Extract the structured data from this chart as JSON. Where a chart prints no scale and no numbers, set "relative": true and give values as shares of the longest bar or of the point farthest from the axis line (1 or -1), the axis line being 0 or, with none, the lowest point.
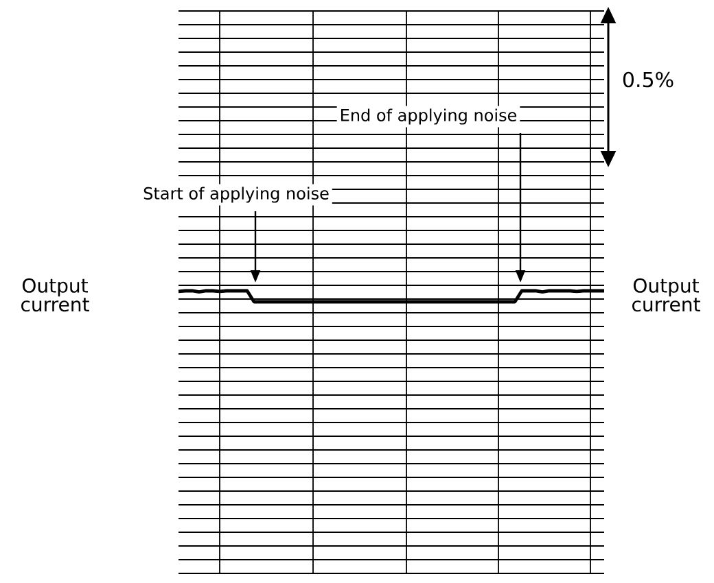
{
  "chart_data": {
    "type": "line",
    "relative": true,
    "color": "#000000",
    "grid": true,
    "ylabel": "Output current",
    "y2label": "Output current",
    "annotations": [
      "Start of applying noise",
      "End of applying noise",
      "0.5%"
    ],
    "categories": [
      null,
      null,
      null,
      null,
      null,
      null,
      null,
      null,
      null,
      null,
      null,
      null,
      null,
      null,
      null,
      null,
      null,
      null,
      null,
      null,
      null,
      null,
      null,
      null,
      null,
      null,
      null,
      null,
      null,
      null,
      null,
      null,
      null,
      null,
      null,
      null,
      null,
      null,
      null,
      null,
      null,
      null,
      null,
      null,
      null,
      null,
      null,
      null,
      null,
      null,
      null,
      null,
      null,
      null,
      null,
      null,
      null,
      null,
      null,
      null,
      null,
      null,
      null
    ],
    "values": [
      0.95,
      1,
      1,
      0.9,
      1,
      1,
      0.95,
      1,
      1,
      1,
      1,
      0,
      0,
      0,
      0,
      0,
      0,
      0,
      0,
      0,
      0,
      0,
      0,
      0,
      0,
      0,
      0,
      0,
      0,
      0,
      0,
      0,
      0,
      0,
      0,
      0,
      0,
      0,
      0,
      0,
      0,
      0,
      0,
      0,
      0,
      0,
      0,
      0,
      0,
      0,
      1,
      1,
      1,
      0.9,
      1,
      1,
      1,
      1,
      0.95,
      1,
      1,
      1,
      1
    ]
  }
}
